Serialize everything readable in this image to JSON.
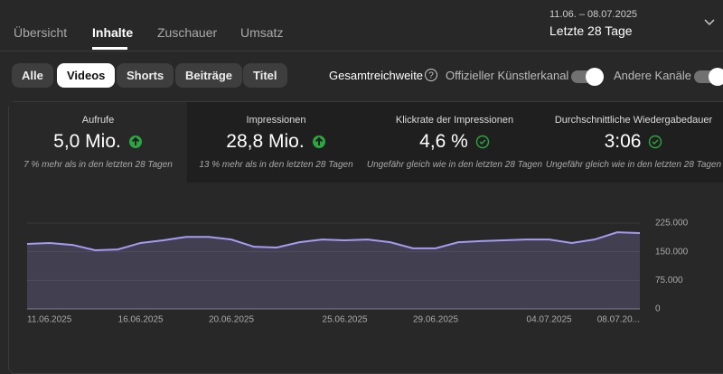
{
  "header": {
    "tabs": [
      "Übersicht",
      "Inhalte",
      "Zuschauer",
      "Umsatz"
    ],
    "date_range": "11.06. – 08.07.2025",
    "period": "Letzte 28 Tage"
  },
  "filters": {
    "chips": [
      "Alle",
      "Videos",
      "Shorts",
      "Beiträge",
      "Titel"
    ],
    "reach_label": "Gesamtreichweite",
    "toggles": [
      "Offizieller Künstlerkanal",
      "Andere Kanäle"
    ]
  },
  "metrics": [
    {
      "label": "Aufrufe",
      "value": "5,0 Mio.",
      "note": "7 % mehr als in den letzten 28 Tagen"
    },
    {
      "label": "Impressionen",
      "value": "28,8 Mio.",
      "note": "13 % mehr als in den letzten 28 Tagen"
    },
    {
      "label": "Klickrate der Impressionen",
      "value": "4,6 %",
      "note": "Ungefähr gleich wie in den letzten 28 Tagen"
    },
    {
      "label": "Durchschnittliche Wiedergabedauer",
      "value": "3:06",
      "note": "Ungefähr gleich wie in den letzten 28 Tagen"
    }
  ],
  "chart_data": {
    "type": "area",
    "color": "#a59cf2",
    "grid": true,
    "categories": [
      "11.06.2025",
      null,
      null,
      null,
      null,
      "16.06.2025",
      null,
      null,
      null,
      "20.06.2025",
      null,
      null,
      null,
      null,
      "25.06.2025",
      null,
      null,
      null,
      "29.06.2025",
      null,
      null,
      null,
      null,
      "04.07.2025",
      null,
      null,
      null,
      "08.07.20..."
    ],
    "values": [
      170500,
      173000,
      168000,
      154000,
      156000,
      173000,
      180000,
      189000,
      189000,
      182000,
      163000,
      161000,
      175000,
      182000,
      180000,
      182000,
      175000,
      159000,
      159000,
      175000,
      178000,
      180000,
      182000,
      182000,
      173000,
      182000,
      201000,
      199000
    ],
    "ylim": [
      0,
      225000
    ],
    "yticks": [
      0,
      {
        "value": 75000,
        "label": "75.000"
      },
      {
        "value": 150000,
        "label": "150.000"
      },
      {
        "value": 225000,
        "label": "225.000"
      }
    ]
  }
}
